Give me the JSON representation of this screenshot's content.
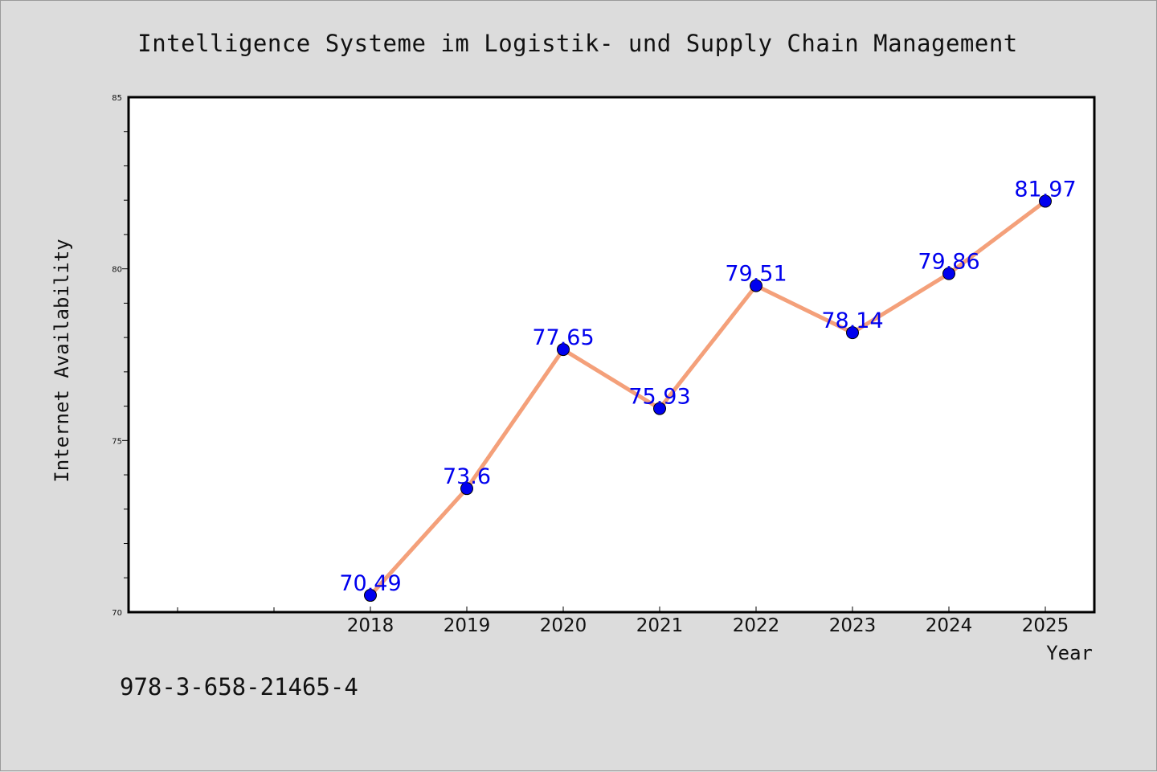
{
  "chart_data": {
    "type": "line",
    "title": "Intelligence Systeme im Logistik- und Supply Chain Management",
    "xlabel": "Year",
    "ylabel": "Internet Availability",
    "x": [
      "2018",
      "2019",
      "2020",
      "2021",
      "2022",
      "2023",
      "2024",
      "2025"
    ],
    "series": [
      {
        "values": [
          70.49,
          73.6,
          77.65,
          75.93,
          79.51,
          78.14,
          79.86,
          81.97
        ],
        "labels": [
          "70.49",
          "73.6",
          "77.65",
          "75.93",
          "79.51",
          "78.14",
          "79.86",
          "81.97"
        ]
      }
    ],
    "ylim": [
      70,
      85
    ],
    "yticks": [
      "70",
      "75",
      "80",
      "85"
    ],
    "grid": false,
    "line_color": "#f4a07a",
    "marker_color": "#0000ee",
    "label_color": "#0000ee"
  },
  "footnote": "978-3-658-21465-4"
}
